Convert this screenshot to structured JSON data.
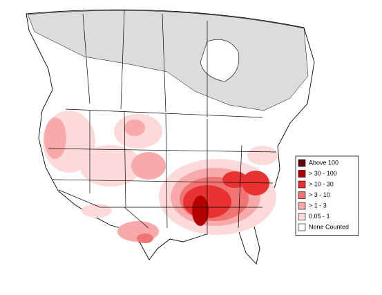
{
  "legend": {
    "items": [
      {
        "label": "Above 100",
        "color": "#5c0b0b"
      },
      {
        "label": "> 30 - 100",
        "color": "#b30000"
      },
      {
        "label": "> 10 - 30",
        "color": "#e83232"
      },
      {
        "label": "> 3 - 10",
        "color": "#f07474"
      },
      {
        "label": "> 1 - 3",
        "color": "#f8aaaa"
      },
      {
        "label": "0.05 - 1",
        "color": "#fcdada"
      },
      {
        "label": "None Counted",
        "color": "#ffffff"
      }
    ]
  }
}
